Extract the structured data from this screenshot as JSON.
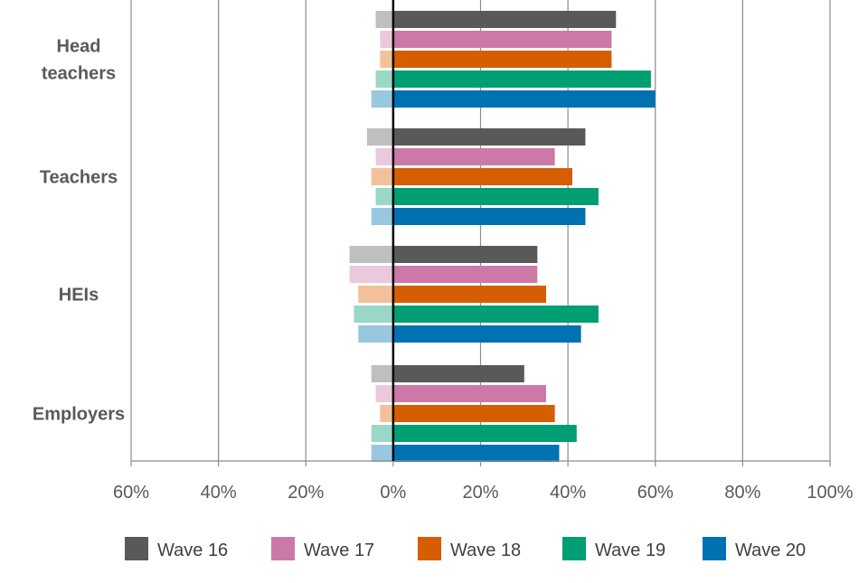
{
  "chart_data": {
    "type": "bar",
    "orientation": "horizontal",
    "diverging": true,
    "title": "",
    "xlabel": "",
    "ylabel": "",
    "xlim": [
      -60,
      100
    ],
    "x_ticks": [
      -60,
      -40,
      -20,
      0,
      20,
      40,
      60,
      80,
      100
    ],
    "x_tick_labels": [
      "60%",
      "40%",
      "20%",
      "0%",
      "20%",
      "40%",
      "60%",
      "80%",
      "100%"
    ],
    "vertical_grid": true,
    "legend_position": "bottom",
    "categories": [
      {
        "label_lines": [
          "Head",
          "teachers"
        ]
      },
      {
        "label_lines": [
          "Teachers"
        ]
      },
      {
        "label_lines": [
          "HEIs"
        ]
      },
      {
        "label_lines": [
          "Employers"
        ]
      }
    ],
    "series": [
      {
        "name": "Wave 16",
        "color": "#595959",
        "light_color": "#bfbfbf",
        "positive": [
          51,
          44,
          33,
          30
        ],
        "negative": [
          4,
          6,
          10,
          5
        ]
      },
      {
        "name": "Wave 17",
        "color": "#cc79a7",
        "light_color": "#ebc9dc",
        "positive": [
          50,
          37,
          33,
          35
        ],
        "negative": [
          3,
          4,
          10,
          4
        ]
      },
      {
        "name": "Wave 18",
        "color": "#d55e00",
        "light_color": "#f2c19a",
        "positive": [
          50,
          41,
          35,
          37
        ],
        "negative": [
          3,
          5,
          8,
          3
        ]
      },
      {
        "name": "Wave 19",
        "color": "#009e73",
        "light_color": "#99d8c7",
        "positive": [
          59,
          47,
          47,
          42
        ],
        "negative": [
          4,
          4,
          9,
          5
        ]
      },
      {
        "name": "Wave 20",
        "color": "#0072b2",
        "light_color": "#99c7e0",
        "positive": [
          60,
          44,
          43,
          38
        ],
        "negative": [
          5,
          5,
          8,
          5
        ]
      }
    ]
  }
}
